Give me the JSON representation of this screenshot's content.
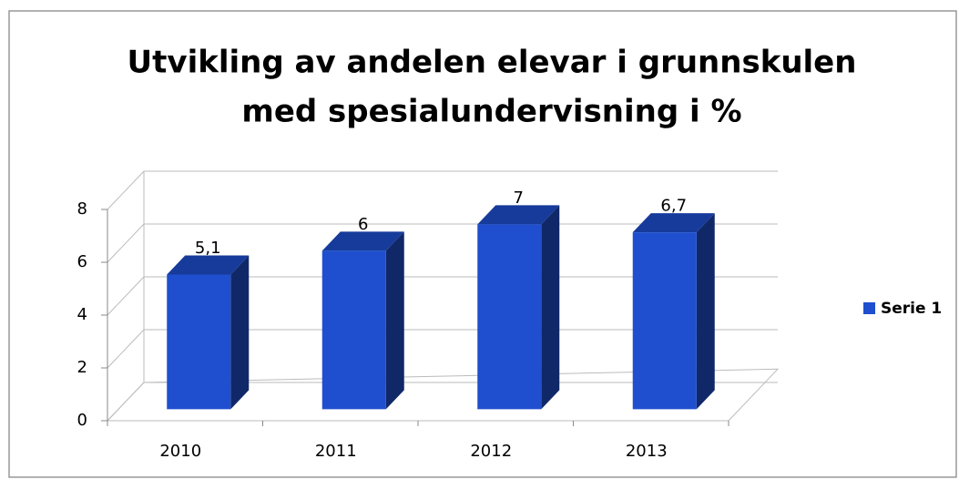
{
  "chart_data": {
    "type": "bar3d",
    "title": [
      "Utvikling av andelen elevar i grunnskulen",
      "med spesialundervisning i %"
    ],
    "categories": [
      "2010",
      "2011",
      "2012",
      "2013"
    ],
    "series": [
      {
        "name": "Serie 1",
        "color": "#1f4fcf",
        "values": [
          5.1,
          6,
          7,
          6.7
        ],
        "value_labels": [
          "5,1",
          "6",
          "7",
          "6,7"
        ]
      }
    ],
    "ylim": [
      0,
      8
    ],
    "yticks": [
      0,
      2,
      4,
      6,
      8
    ],
    "grid": true,
    "legend": "right"
  }
}
